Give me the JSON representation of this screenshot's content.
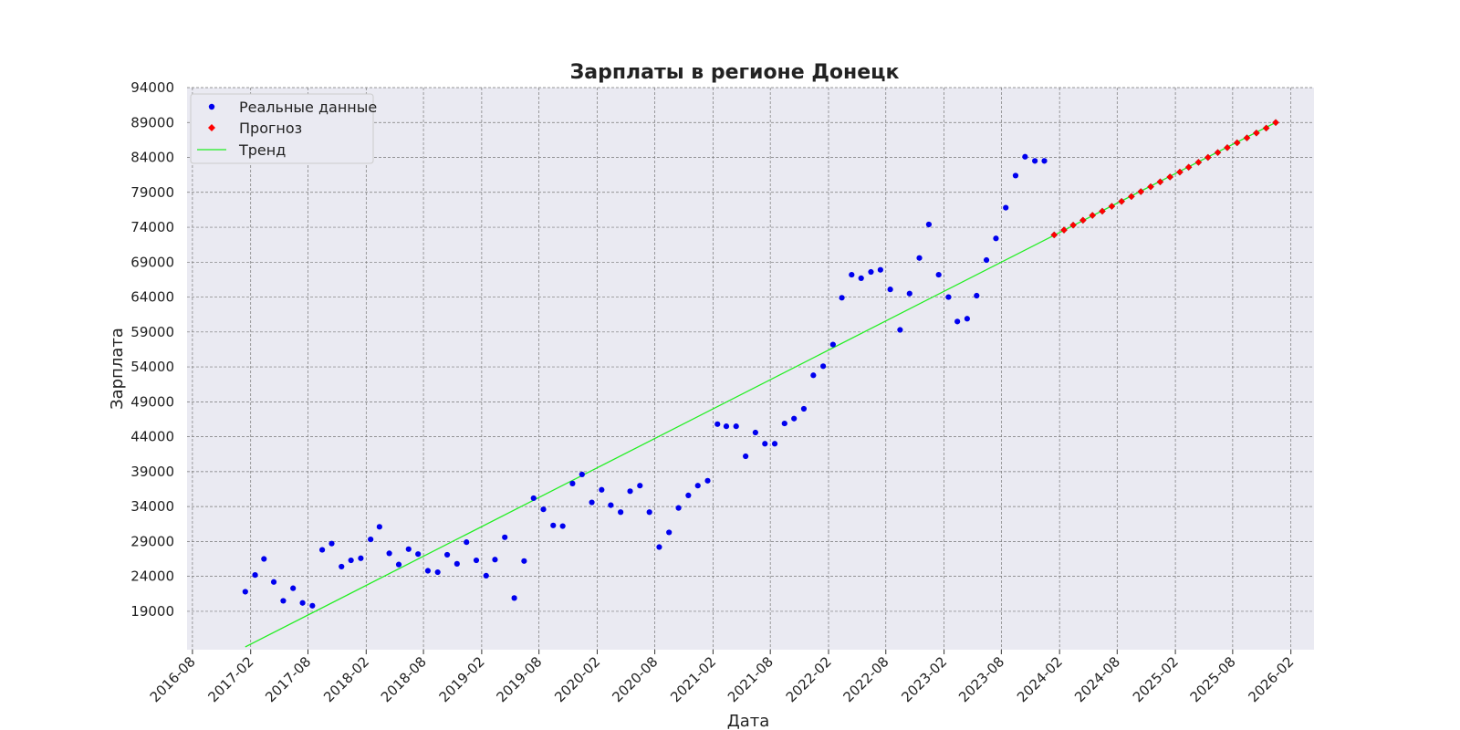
{
  "chart_data": {
    "type": "scatter",
    "title": "Зарплаты в регионе Донецк",
    "xlabel": "Дата",
    "ylabel": "Зарплата",
    "xlim": [
      "2016-07-15",
      "2026-04-15"
    ],
    "ylim": [
      13500,
      94000
    ],
    "x_ticks": [
      "2016-08",
      "2017-02",
      "2017-08",
      "2018-02",
      "2018-08",
      "2019-02",
      "2019-08",
      "2020-02",
      "2020-08",
      "2021-02",
      "2021-08",
      "2022-02",
      "2022-08",
      "2023-02",
      "2023-08",
      "2024-02",
      "2024-08",
      "2025-02",
      "2025-08",
      "2026-02"
    ],
    "y_ticks": [
      19000,
      24000,
      29000,
      34000,
      39000,
      44000,
      49000,
      54000,
      59000,
      64000,
      69000,
      74000,
      79000,
      84000,
      89000,
      94000
    ],
    "grid": true,
    "legend_position": "top-left",
    "colors": {
      "plot_bg": "#eaeaf2",
      "grid": "#777777",
      "real": "#0000ee",
      "forecast": "#ff0000",
      "trend": "#22ee22"
    },
    "series": [
      {
        "name": "Реальные данные",
        "kind": "scatter",
        "color": "#0000ee",
        "points": [
          [
            "2017-01",
            21800
          ],
          [
            "2017-02",
            24200
          ],
          [
            "2017-03",
            26500
          ],
          [
            "2017-04",
            23200
          ],
          [
            "2017-05",
            20500
          ],
          [
            "2017-06",
            22300
          ],
          [
            "2017-07",
            20200
          ],
          [
            "2017-08",
            19800
          ],
          [
            "2017-09",
            27800
          ],
          [
            "2017-10",
            28700
          ],
          [
            "2017-11",
            25400
          ],
          [
            "2017-12",
            26300
          ],
          [
            "2018-01",
            26600
          ],
          [
            "2018-02",
            29300
          ],
          [
            "2018-03",
            31100
          ],
          [
            "2018-04",
            27300
          ],
          [
            "2018-05",
            25700
          ],
          [
            "2018-06",
            27900
          ],
          [
            "2018-07",
            27200
          ],
          [
            "2018-08",
            24800
          ],
          [
            "2018-09",
            24600
          ],
          [
            "2018-10",
            27100
          ],
          [
            "2018-11",
            25800
          ],
          [
            "2018-12",
            28900
          ],
          [
            "2019-01",
            26300
          ],
          [
            "2019-02",
            24100
          ],
          [
            "2019-03",
            26400
          ],
          [
            "2019-04",
            29600
          ],
          [
            "2019-05",
            20900
          ],
          [
            "2019-06",
            26200
          ],
          [
            "2019-07",
            35200
          ],
          [
            "2019-08",
            33600
          ],
          [
            "2019-09",
            31300
          ],
          [
            "2019-10",
            31200
          ],
          [
            "2019-11",
            37300
          ],
          [
            "2019-12",
            38600
          ],
          [
            "2020-01",
            34600
          ],
          [
            "2020-02",
            36400
          ],
          [
            "2020-03",
            34200
          ],
          [
            "2020-04",
            33200
          ],
          [
            "2020-05",
            36200
          ],
          [
            "2020-06",
            37000
          ],
          [
            "2020-07",
            33200
          ],
          [
            "2020-08",
            28200
          ],
          [
            "2020-09",
            30300
          ],
          [
            "2020-10",
            33800
          ],
          [
            "2020-11",
            35600
          ],
          [
            "2020-12",
            37000
          ],
          [
            "2021-01",
            37700
          ],
          [
            "2021-02",
            45800
          ],
          [
            "2021-03",
            45500
          ],
          [
            "2021-04",
            45500
          ],
          [
            "2021-05",
            41200
          ],
          [
            "2021-06",
            44600
          ],
          [
            "2021-07",
            43000
          ],
          [
            "2021-08",
            43000
          ],
          [
            "2021-09",
            45900
          ],
          [
            "2021-10",
            46600
          ],
          [
            "2021-11",
            48000
          ],
          [
            "2021-12",
            52800
          ],
          [
            "2022-01",
            54100
          ],
          [
            "2022-02",
            57200
          ],
          [
            "2022-03",
            63900
          ],
          [
            "2022-04",
            67200
          ],
          [
            "2022-05",
            66700
          ],
          [
            "2022-06",
            67600
          ],
          [
            "2022-07",
            67900
          ],
          [
            "2022-08",
            65100
          ],
          [
            "2022-09",
            59300
          ],
          [
            "2022-10",
            64500
          ],
          [
            "2022-11",
            69600
          ],
          [
            "2022-12",
            74400
          ],
          [
            "2023-01",
            67200
          ],
          [
            "2023-02",
            64000
          ],
          [
            "2023-03",
            60500
          ],
          [
            "2023-04",
            60900
          ],
          [
            "2023-05",
            64200
          ],
          [
            "2023-06",
            69300
          ],
          [
            "2023-07",
            72400
          ],
          [
            "2023-08",
            76800
          ],
          [
            "2023-09",
            81400
          ],
          [
            "2023-10",
            84100
          ],
          [
            "2023-11",
            83500
          ],
          [
            "2023-12",
            83500
          ]
        ]
      },
      {
        "name": "Прогноз",
        "kind": "scatter",
        "color": "#ff0000",
        "points": [
          [
            "2024-01",
            72900
          ],
          [
            "2024-02",
            73600
          ],
          [
            "2024-03",
            74300
          ],
          [
            "2024-04",
            75000
          ],
          [
            "2024-05",
            75700
          ],
          [
            "2024-06",
            76300
          ],
          [
            "2024-07",
            77000
          ],
          [
            "2024-08",
            77700
          ],
          [
            "2024-09",
            78400
          ],
          [
            "2024-10",
            79100
          ],
          [
            "2024-11",
            79800
          ],
          [
            "2024-12",
            80500
          ],
          [
            "2025-01",
            81200
          ],
          [
            "2025-02",
            81900
          ],
          [
            "2025-03",
            82600
          ],
          [
            "2025-04",
            83300
          ],
          [
            "2025-05",
            84000
          ],
          [
            "2025-06",
            84700
          ],
          [
            "2025-07",
            85400
          ],
          [
            "2025-08",
            86100
          ],
          [
            "2025-09",
            86800
          ],
          [
            "2025-10",
            87500
          ],
          [
            "2025-11",
            88200
          ],
          [
            "2025-12",
            89000
          ]
        ]
      },
      {
        "name": "Тренд",
        "kind": "line",
        "color": "#22ee22",
        "points": [
          [
            "2017-01",
            13900
          ],
          [
            "2025-12",
            89000
          ]
        ]
      }
    ]
  }
}
